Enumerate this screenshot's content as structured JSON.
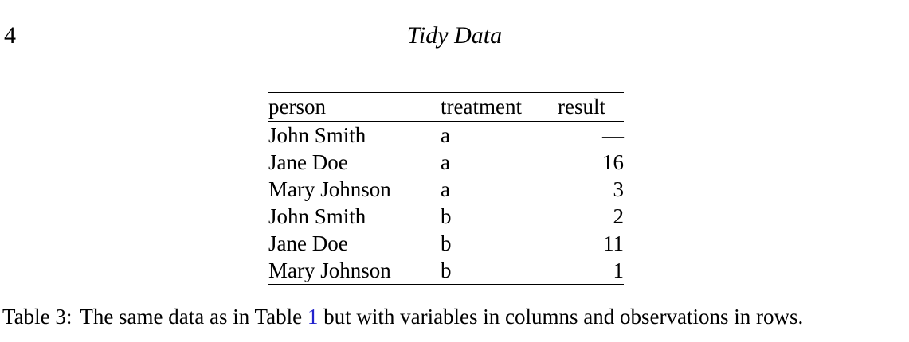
{
  "header": {
    "page_number": "4",
    "running_title": "Tidy Data"
  },
  "table": {
    "columns": [
      "person",
      "treatment",
      "result"
    ],
    "rows": [
      [
        "John Smith",
        "a",
        "—"
      ],
      [
        "Jane Doe",
        "a",
        "16"
      ],
      [
        "Mary Johnson",
        "a",
        "3"
      ],
      [
        "John Smith",
        "b",
        "2"
      ],
      [
        "Jane Doe",
        "b",
        "11"
      ],
      [
        "Mary Johnson",
        "b",
        "1"
      ]
    ]
  },
  "caption": {
    "label": "Table 3:",
    "text_before_link": "The same data as in Table ",
    "link_text": "1",
    "text_after_link": " but with variables in columns and observations in rows."
  },
  "colors": {
    "text": "#000000",
    "background": "#ffffff",
    "link": "#2222cc"
  }
}
